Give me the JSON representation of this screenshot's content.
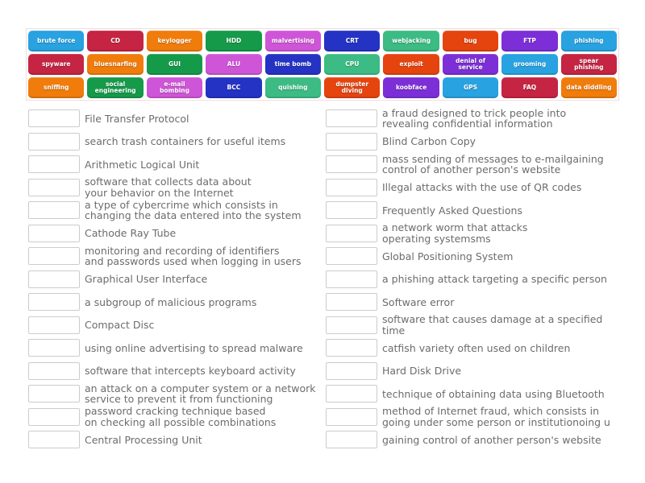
{
  "palette": {
    "lightblue": "#28a2e0",
    "crimson": "#c52442",
    "orange": "#f07c0c",
    "green": "#159a4a",
    "orchid": "#cf55d8",
    "darkblue": "#2533c4",
    "emerald": "#3cbb85",
    "vermillion": "#e5440f",
    "purple": "#7c2fd6"
  },
  "word_bank": {
    "rows": [
      [
        {
          "lines": [
            "brute force"
          ],
          "color": "lightblue"
        },
        {
          "lines": [
            "CD"
          ],
          "color": "crimson"
        },
        {
          "lines": [
            "keylogger"
          ],
          "color": "orange"
        },
        {
          "lines": [
            "HDD"
          ],
          "color": "green"
        },
        {
          "lines": [
            "malvertising"
          ],
          "color": "orchid"
        },
        {
          "lines": [
            "CRT"
          ],
          "color": "darkblue"
        },
        {
          "lines": [
            "webjacking"
          ],
          "color": "emerald"
        },
        {
          "lines": [
            "bug"
          ],
          "color": "vermillion"
        },
        {
          "lines": [
            "FTP"
          ],
          "color": "purple"
        },
        {
          "lines": [
            "phishing"
          ],
          "color": "lightblue"
        }
      ],
      [
        {
          "lines": [
            "spyware"
          ],
          "color": "crimson"
        },
        {
          "lines": [
            "bluesnarfing"
          ],
          "color": "orange"
        },
        {
          "lines": [
            "GUI"
          ],
          "color": "green"
        },
        {
          "lines": [
            "ALU"
          ],
          "color": "orchid"
        },
        {
          "lines": [
            "time bomb"
          ],
          "color": "darkblue"
        },
        {
          "lines": [
            "CPU"
          ],
          "color": "emerald"
        },
        {
          "lines": [
            "exploit"
          ],
          "color": "vermillion"
        },
        {
          "lines": [
            "denial of",
            "service"
          ],
          "color": "purple"
        },
        {
          "lines": [
            "grooming"
          ],
          "color": "lightblue"
        },
        {
          "lines": [
            "spear",
            "phishing"
          ],
          "color": "crimson"
        }
      ],
      [
        {
          "lines": [
            "sniffing"
          ],
          "color": "orange"
        },
        {
          "lines": [
            "social",
            "engineering"
          ],
          "color": "green"
        },
        {
          "lines": [
            "e-mail",
            "bombing"
          ],
          "color": "orchid"
        },
        {
          "lines": [
            "BCC"
          ],
          "color": "darkblue"
        },
        {
          "lines": [
            "quishing"
          ],
          "color": "emerald"
        },
        {
          "lines": [
            "dumpster",
            "diving"
          ],
          "color": "vermillion"
        },
        {
          "lines": [
            "koobface"
          ],
          "color": "purple"
        },
        {
          "lines": [
            "GPS"
          ],
          "color": "lightblue"
        },
        {
          "lines": [
            "FAQ"
          ],
          "color": "crimson"
        },
        {
          "lines": [
            "data diddling"
          ],
          "color": "orange"
        }
      ]
    ]
  },
  "matches": {
    "left": [
      {
        "lines": [
          "File Transfer Protocol"
        ]
      },
      {
        "lines": [
          "search trash containers for useful items"
        ]
      },
      {
        "lines": [
          "Arithmetic Logical Unit"
        ]
      },
      {
        "lines": [
          "software that collects data about",
          "your behavior on the Internet"
        ]
      },
      {
        "lines": [
          "a type of cybercrime which consists in",
          "changing the data entered into the system"
        ]
      },
      {
        "lines": [
          "Cathode Ray Tube"
        ]
      },
      {
        "lines": [
          "monitoring and recording of identifiers",
          "and passwords used when logging in users"
        ]
      },
      {
        "lines": [
          "Graphical User Interface"
        ]
      },
      {
        "lines": [
          "a subgroup of malicious programs"
        ]
      },
      {
        "lines": [
          "Compact Disc"
        ]
      },
      {
        "lines": [
          "using online advertising to spread malware"
        ]
      },
      {
        "lines": [
          "software that intercepts keyboard activity"
        ]
      },
      {
        "lines": [
          "an attack on a computer system or a network",
          "service to prevent it from functioning"
        ]
      },
      {
        "lines": [
          "password cracking technique based",
          "on checking all possible combinations"
        ]
      },
      {
        "lines": [
          "Central Processing Unit"
        ]
      }
    ],
    "right": [
      {
        "lines": [
          "a fraud designed to trick people into",
          "revealing confidential information"
        ]
      },
      {
        "lines": [
          "Blind Carbon Copy"
        ]
      },
      {
        "lines": [
          "mass sending of messages to e-mailgaining",
          "control of another person's website"
        ]
      },
      {
        "lines": [
          "Illegal attacks with the use of QR codes"
        ]
      },
      {
        "lines": [
          "Frequently Asked Questions"
        ]
      },
      {
        "lines": [
          "a network worm that attacks",
          "operating systemsms"
        ]
      },
      {
        "lines": [
          "Global Positioning System"
        ]
      },
      {
        "lines": [
          "a phishing attack targeting a specific person"
        ]
      },
      {
        "lines": [
          "Software error"
        ]
      },
      {
        "lines": [
          "software that causes damage at a specified time"
        ]
      },
      {
        "lines": [
          "catfish variety often used on children"
        ]
      },
      {
        "lines": [
          "Hard Disk Drive"
        ]
      },
      {
        "lines": [
          "technique of obtaining data using Bluetooth"
        ]
      },
      {
        "lines": [
          "method of Internet fraud, which consists in",
          "going under some person or institutionoing u"
        ]
      },
      {
        "lines": [
          "gaining control of another person's website"
        ]
      }
    ]
  }
}
